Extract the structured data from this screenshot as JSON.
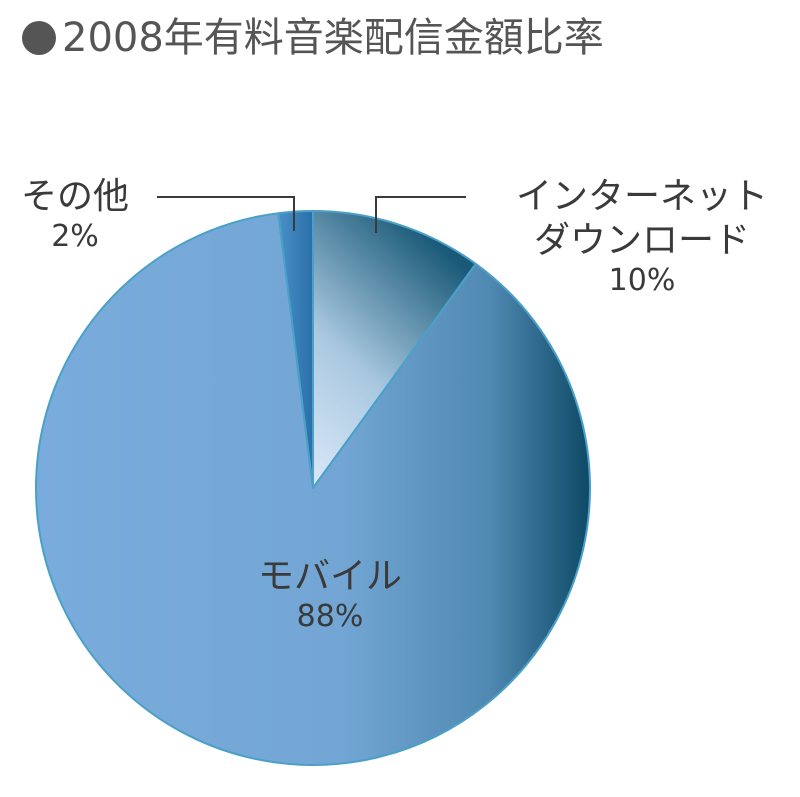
{
  "title": "●2008年有料音楽配信金額比率",
  "title_text": "2008年有料音楽配信金額比率",
  "chart_data": {
    "type": "pie",
    "title": "2008年有料音楽配信金額比率",
    "slices": [
      {
        "name_lines": [
          "インターネット",
          "ダウンロード"
        ],
        "value": 10,
        "value_label": "10%",
        "color": "#c9def2"
      },
      {
        "name_lines": [
          "モバイル"
        ],
        "value": 88,
        "value_label": "88%",
        "color": "#77aad8"
      },
      {
        "name_lines": [
          "その他"
        ],
        "value": 2,
        "value_label": "2%",
        "color": "#3b7fb8"
      }
    ],
    "start": "top",
    "direction": "clockwise",
    "legend": "none"
  },
  "colors": {
    "text": "#3a3a3a",
    "title": "#555555",
    "dark_blue": "#0e4a66",
    "light_blue": "#d6e6f7",
    "outline": "#4aa0c8"
  }
}
